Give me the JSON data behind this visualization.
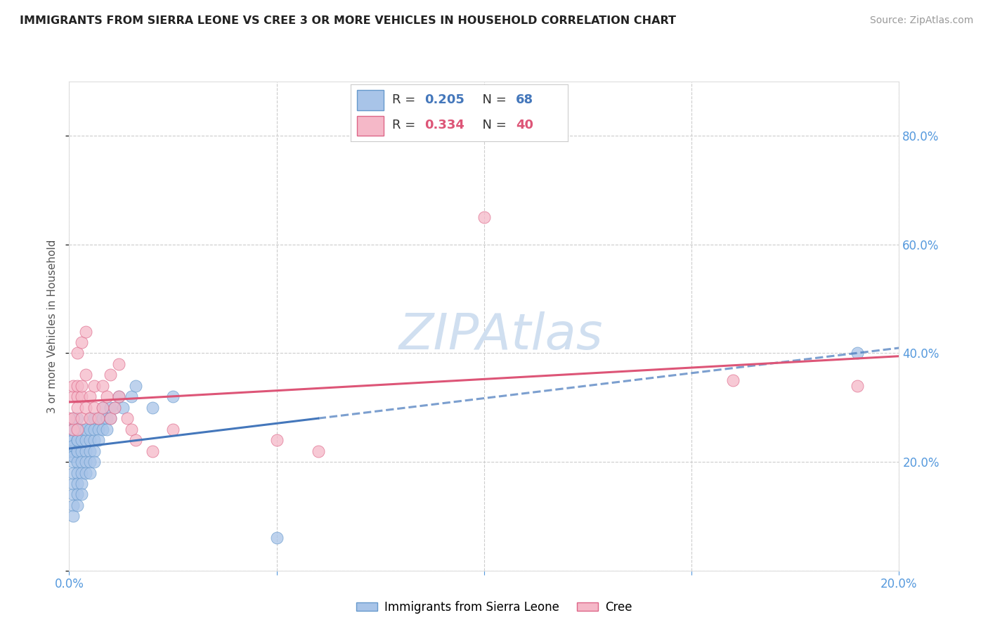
{
  "title": "IMMIGRANTS FROM SIERRA LEONE VS CREE 3 OR MORE VEHICLES IN HOUSEHOLD CORRELATION CHART",
  "source": "Source: ZipAtlas.com",
  "ylabel": "3 or more Vehicles in Household",
  "xlim": [
    0.0,
    0.2
  ],
  "ylim": [
    0.0,
    0.9
  ],
  "xticks": [
    0.0,
    0.05,
    0.1,
    0.15,
    0.2
  ],
  "yticks": [
    0.0,
    0.2,
    0.4,
    0.6,
    0.8
  ],
  "blue_R": 0.205,
  "blue_N": 68,
  "pink_R": 0.334,
  "pink_N": 40,
  "legend_label_blue": "Immigrants from Sierra Leone",
  "legend_label_pink": "Cree",
  "blue_dot_color": "#a8c4e8",
  "pink_dot_color": "#f5b8c8",
  "blue_edge_color": "#6699cc",
  "pink_edge_color": "#dd6688",
  "blue_line_color": "#4477bb",
  "pink_line_color": "#dd5577",
  "tick_color": "#5599dd",
  "watermark_color": "#d0dff0",
  "blue_scatter_x": [
    0.0,
    0.0,
    0.0,
    0.001,
    0.001,
    0.001,
    0.001,
    0.001,
    0.001,
    0.001,
    0.001,
    0.001,
    0.001,
    0.001,
    0.001,
    0.002,
    0.002,
    0.002,
    0.002,
    0.002,
    0.002,
    0.002,
    0.002,
    0.002,
    0.002,
    0.002,
    0.003,
    0.003,
    0.003,
    0.003,
    0.003,
    0.003,
    0.003,
    0.004,
    0.004,
    0.004,
    0.004,
    0.004,
    0.005,
    0.005,
    0.005,
    0.005,
    0.005,
    0.005,
    0.006,
    0.006,
    0.006,
    0.006,
    0.006,
    0.007,
    0.007,
    0.007,
    0.008,
    0.008,
    0.008,
    0.009,
    0.009,
    0.01,
    0.01,
    0.011,
    0.012,
    0.013,
    0.015,
    0.016,
    0.02,
    0.025,
    0.05,
    0.19
  ],
  "blue_scatter_y": [
    0.22,
    0.24,
    0.26,
    0.2,
    0.22,
    0.24,
    0.26,
    0.28,
    0.21,
    0.23,
    0.14,
    0.16,
    0.18,
    0.12,
    0.1,
    0.22,
    0.24,
    0.26,
    0.28,
    0.2,
    0.18,
    0.16,
    0.14,
    0.12,
    0.22,
    0.24,
    0.22,
    0.24,
    0.26,
    0.2,
    0.18,
    0.16,
    0.14,
    0.22,
    0.24,
    0.26,
    0.2,
    0.18,
    0.22,
    0.24,
    0.26,
    0.28,
    0.2,
    0.18,
    0.24,
    0.26,
    0.28,
    0.22,
    0.2,
    0.26,
    0.28,
    0.24,
    0.28,
    0.3,
    0.26,
    0.28,
    0.26,
    0.3,
    0.28,
    0.3,
    0.32,
    0.3,
    0.32,
    0.34,
    0.3,
    0.32,
    0.06,
    0.4
  ],
  "pink_scatter_x": [
    0.0,
    0.001,
    0.001,
    0.001,
    0.001,
    0.002,
    0.002,
    0.002,
    0.002,
    0.003,
    0.003,
    0.003,
    0.004,
    0.004,
    0.005,
    0.005,
    0.006,
    0.006,
    0.007,
    0.008,
    0.008,
    0.009,
    0.01,
    0.011,
    0.012,
    0.014,
    0.015,
    0.016,
    0.02,
    0.025,
    0.002,
    0.003,
    0.004,
    0.01,
    0.012,
    0.05,
    0.06,
    0.1,
    0.16,
    0.19
  ],
  "pink_scatter_y": [
    0.28,
    0.26,
    0.28,
    0.32,
    0.34,
    0.26,
    0.3,
    0.32,
    0.34,
    0.28,
    0.32,
    0.34,
    0.3,
    0.36,
    0.28,
    0.32,
    0.3,
    0.34,
    0.28,
    0.3,
    0.34,
    0.32,
    0.28,
    0.3,
    0.32,
    0.28,
    0.26,
    0.24,
    0.22,
    0.26,
    0.4,
    0.42,
    0.44,
    0.36,
    0.38,
    0.24,
    0.22,
    0.65,
    0.35,
    0.34
  ]
}
